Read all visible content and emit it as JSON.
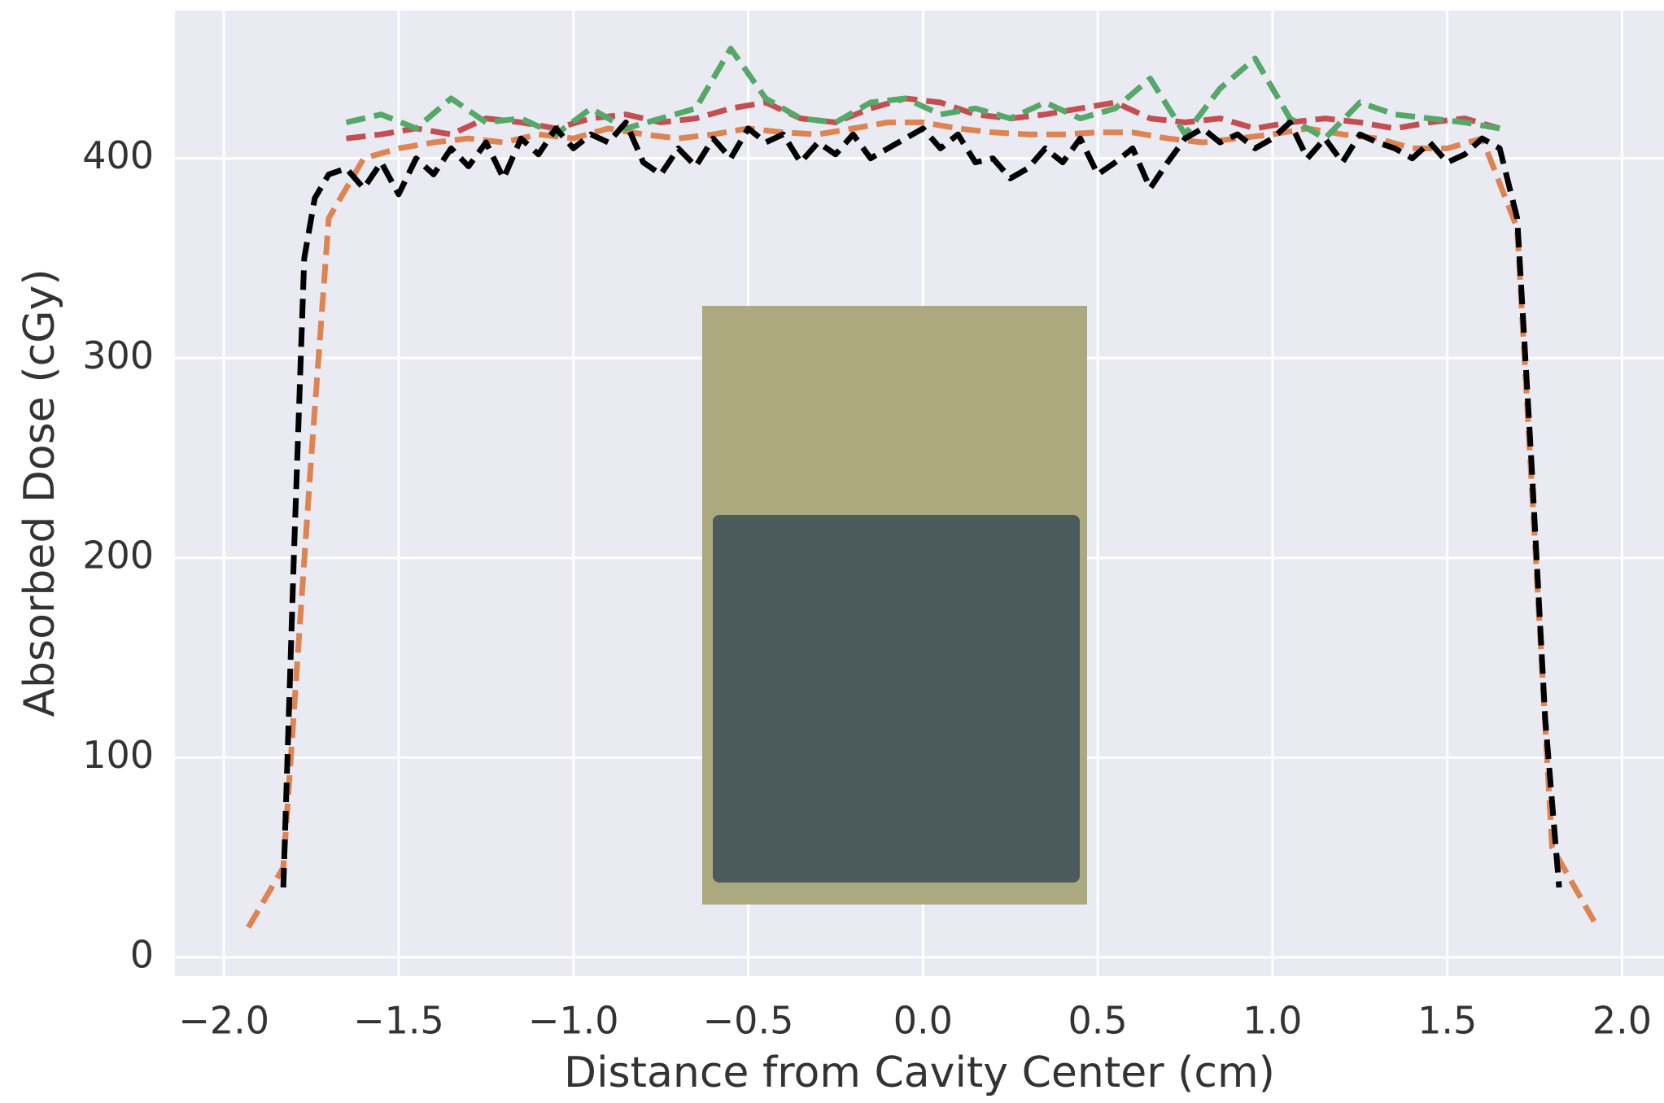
{
  "chart_data": {
    "type": "line",
    "x_label": "Distance from Cavity Center (cm)",
    "y_label": "Absorbed Dose (cGy)",
    "xlim": [
      -2.14,
      2.12
    ],
    "ylim": [
      -9.4,
      474
    ],
    "xticks": [
      {
        "value": -2.0,
        "label": "−2.0"
      },
      {
        "value": -1.5,
        "label": "−1.5"
      },
      {
        "value": -1.0,
        "label": "−1.0"
      },
      {
        "value": -0.5,
        "label": "−0.5"
      },
      {
        "value": 0.0,
        "label": "0.0"
      },
      {
        "value": 0.5,
        "label": "0.5"
      },
      {
        "value": 1.0,
        "label": "1.0"
      },
      {
        "value": 1.5,
        "label": "1.5"
      },
      {
        "value": 2.0,
        "label": "2.0"
      }
    ],
    "yticks": [
      0,
      100,
      200,
      300,
      400
    ],
    "grid": true,
    "series": [
      {
        "color": "#dd8452",
        "x": [
          -1.93,
          -1.83,
          -1.75,
          -1.7,
          -1.6,
          -1.5,
          -1.4,
          -1.3,
          -1.2,
          -1.1,
          -1.0,
          -0.9,
          -0.8,
          -0.7,
          -0.6,
          -0.5,
          -0.4,
          -0.3,
          -0.2,
          -0.1,
          0.0,
          0.1,
          0.2,
          0.3,
          0.4,
          0.5,
          0.6,
          0.7,
          0.8,
          0.9,
          1.0,
          1.1,
          1.2,
          1.3,
          1.4,
          1.5,
          1.6,
          1.7,
          1.8,
          1.92
        ],
        "values": [
          15,
          45,
          250,
          370,
          400,
          405,
          408,
          410,
          408,
          412,
          410,
          415,
          412,
          410,
          412,
          415,
          413,
          412,
          415,
          418,
          418,
          415,
          413,
          412,
          412,
          413,
          413,
          410,
          408,
          410,
          412,
          415,
          412,
          410,
          405,
          405,
          410,
          365,
          55,
          18
        ]
      },
      {
        "color": "#c44e52",
        "x": [
          -1.65,
          -1.55,
          -1.45,
          -1.35,
          -1.25,
          -1.15,
          -1.05,
          -0.95,
          -0.85,
          -0.75,
          -0.65,
          -0.55,
          -0.45,
          -0.35,
          -0.25,
          -0.15,
          -0.05,
          0.05,
          0.15,
          0.25,
          0.35,
          0.45,
          0.55,
          0.65,
          0.75,
          0.85,
          0.95,
          1.05,
          1.15,
          1.25,
          1.35,
          1.45,
          1.55,
          1.65
        ],
        "values": [
          410,
          412,
          415,
          412,
          420,
          418,
          415,
          420,
          422,
          418,
          420,
          425,
          428,
          420,
          418,
          425,
          430,
          428,
          422,
          420,
          422,
          425,
          428,
          420,
          418,
          420,
          415,
          418,
          420,
          418,
          415,
          418,
          420,
          415
        ]
      },
      {
        "color": "#55a868",
        "x": [
          -1.65,
          -1.55,
          -1.45,
          -1.35,
          -1.25,
          -1.15,
          -1.05,
          -0.95,
          -0.85,
          -0.75,
          -0.65,
          -0.55,
          -0.45,
          -0.35,
          -0.25,
          -0.15,
          -0.05,
          0.05,
          0.15,
          0.25,
          0.35,
          0.45,
          0.55,
          0.65,
          0.75,
          0.85,
          0.95,
          1.05,
          1.15,
          1.25,
          1.35,
          1.45,
          1.55,
          1.65
        ],
        "values": [
          418,
          422,
          415,
          430,
          418,
          420,
          412,
          425,
          415,
          420,
          425,
          455,
          430,
          420,
          418,
          428,
          430,
          422,
          425,
          420,
          428,
          420,
          425,
          440,
          412,
          435,
          450,
          420,
          410,
          428,
          422,
          420,
          418,
          415
        ]
      },
      {
        "color": "#000000",
        "x": [
          -1.83,
          -1.8,
          -1.77,
          -1.74,
          -1.7,
          -1.65,
          -1.6,
          -1.55,
          -1.5,
          -1.45,
          -1.4,
          -1.35,
          -1.3,
          -1.25,
          -1.2,
          -1.15,
          -1.1,
          -1.05,
          -1.0,
          -0.95,
          -0.9,
          -0.85,
          -0.8,
          -0.75,
          -0.7,
          -0.65,
          -0.6,
          -0.55,
          -0.5,
          -0.45,
          -0.4,
          -0.35,
          -0.3,
          -0.25,
          -0.2,
          -0.15,
          -0.1,
          -0.05,
          0.0,
          0.05,
          0.1,
          0.15,
          0.2,
          0.25,
          0.3,
          0.35,
          0.4,
          0.45,
          0.5,
          0.55,
          0.6,
          0.65,
          0.7,
          0.75,
          0.8,
          0.85,
          0.9,
          0.95,
          1.0,
          1.05,
          1.1,
          1.15,
          1.2,
          1.25,
          1.3,
          1.35,
          1.4,
          1.45,
          1.5,
          1.55,
          1.6,
          1.65,
          1.7,
          1.74,
          1.78,
          1.82
        ],
        "values": [
          35,
          200,
          350,
          380,
          392,
          395,
          385,
          398,
          382,
          400,
          392,
          405,
          396,
          408,
          390,
          410,
          402,
          415,
          405,
          412,
          408,
          418,
          398,
          392,
          405,
          396,
          410,
          400,
          415,
          408,
          412,
          398,
          408,
          402,
          412,
          400,
          405,
          410,
          415,
          405,
          412,
          398,
          400,
          390,
          395,
          405,
          398,
          410,
          392,
          398,
          405,
          385,
          398,
          410,
          415,
          408,
          412,
          405,
          410,
          418,
          400,
          410,
          398,
          412,
          408,
          405,
          400,
          408,
          398,
          402,
          410,
          405,
          370,
          250,
          120,
          35
        ]
      }
    ]
  }
}
